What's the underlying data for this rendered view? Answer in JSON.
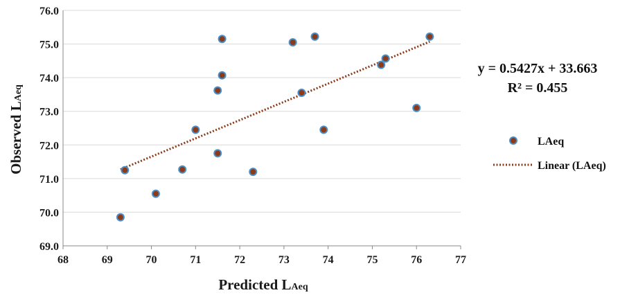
{
  "chart_data": {
    "type": "scatter",
    "title": "",
    "xlabel_main": "Predicted L",
    "xlabel_sub": "Aeq",
    "ylabel_main": "Observed L",
    "ylabel_sub": "Aeq",
    "xlim": [
      68,
      77
    ],
    "ylim": [
      69.0,
      76.0
    ],
    "x_ticks": [
      "68",
      "69",
      "70",
      "71",
      "72",
      "73",
      "74",
      "75",
      "76",
      "77"
    ],
    "y_ticks": [
      "69.0",
      "70.0",
      "71.0",
      "72.0",
      "73.0",
      "74.0",
      "75.0",
      "76.0"
    ],
    "grid": "horizontal",
    "series": [
      {
        "name": "LAeq",
        "marker_color": "#8b3a1a",
        "marker_edge_color": "#4a90c8",
        "points": [
          {
            "x": 69.3,
            "y": 69.85
          },
          {
            "x": 69.4,
            "y": 71.25
          },
          {
            "x": 70.1,
            "y": 70.55
          },
          {
            "x": 70.7,
            "y": 71.27
          },
          {
            "x": 71.0,
            "y": 72.45
          },
          {
            "x": 71.5,
            "y": 73.62
          },
          {
            "x": 71.5,
            "y": 71.75
          },
          {
            "x": 71.6,
            "y": 75.15
          },
          {
            "x": 71.6,
            "y": 74.07
          },
          {
            "x": 72.3,
            "y": 71.2
          },
          {
            "x": 73.2,
            "y": 75.05
          },
          {
            "x": 73.4,
            "y": 73.55
          },
          {
            "x": 73.7,
            "y": 75.22
          },
          {
            "x": 73.9,
            "y": 72.45
          },
          {
            "x": 75.2,
            "y": 74.38
          },
          {
            "x": 75.3,
            "y": 74.57
          },
          {
            "x": 76.0,
            "y": 73.1
          },
          {
            "x": 76.3,
            "y": 75.22
          }
        ]
      }
    ],
    "trendline": {
      "name": "Linear (LAeq)",
      "type": "linear",
      "slope": 0.5427,
      "intercept": 33.663,
      "x_range": [
        69.3,
        76.3
      ],
      "color": "#8b3a1a",
      "style": "dotted"
    },
    "equation_line1": "y = 0.5427x + 33.663",
    "equation_line2": "R² = 0.455",
    "legend": {
      "placement": "right",
      "entries": [
        "LAeq",
        "Linear (LAeq)"
      ]
    },
    "colors": {
      "grid": "#d9d9d9",
      "axis": "#888888"
    }
  }
}
